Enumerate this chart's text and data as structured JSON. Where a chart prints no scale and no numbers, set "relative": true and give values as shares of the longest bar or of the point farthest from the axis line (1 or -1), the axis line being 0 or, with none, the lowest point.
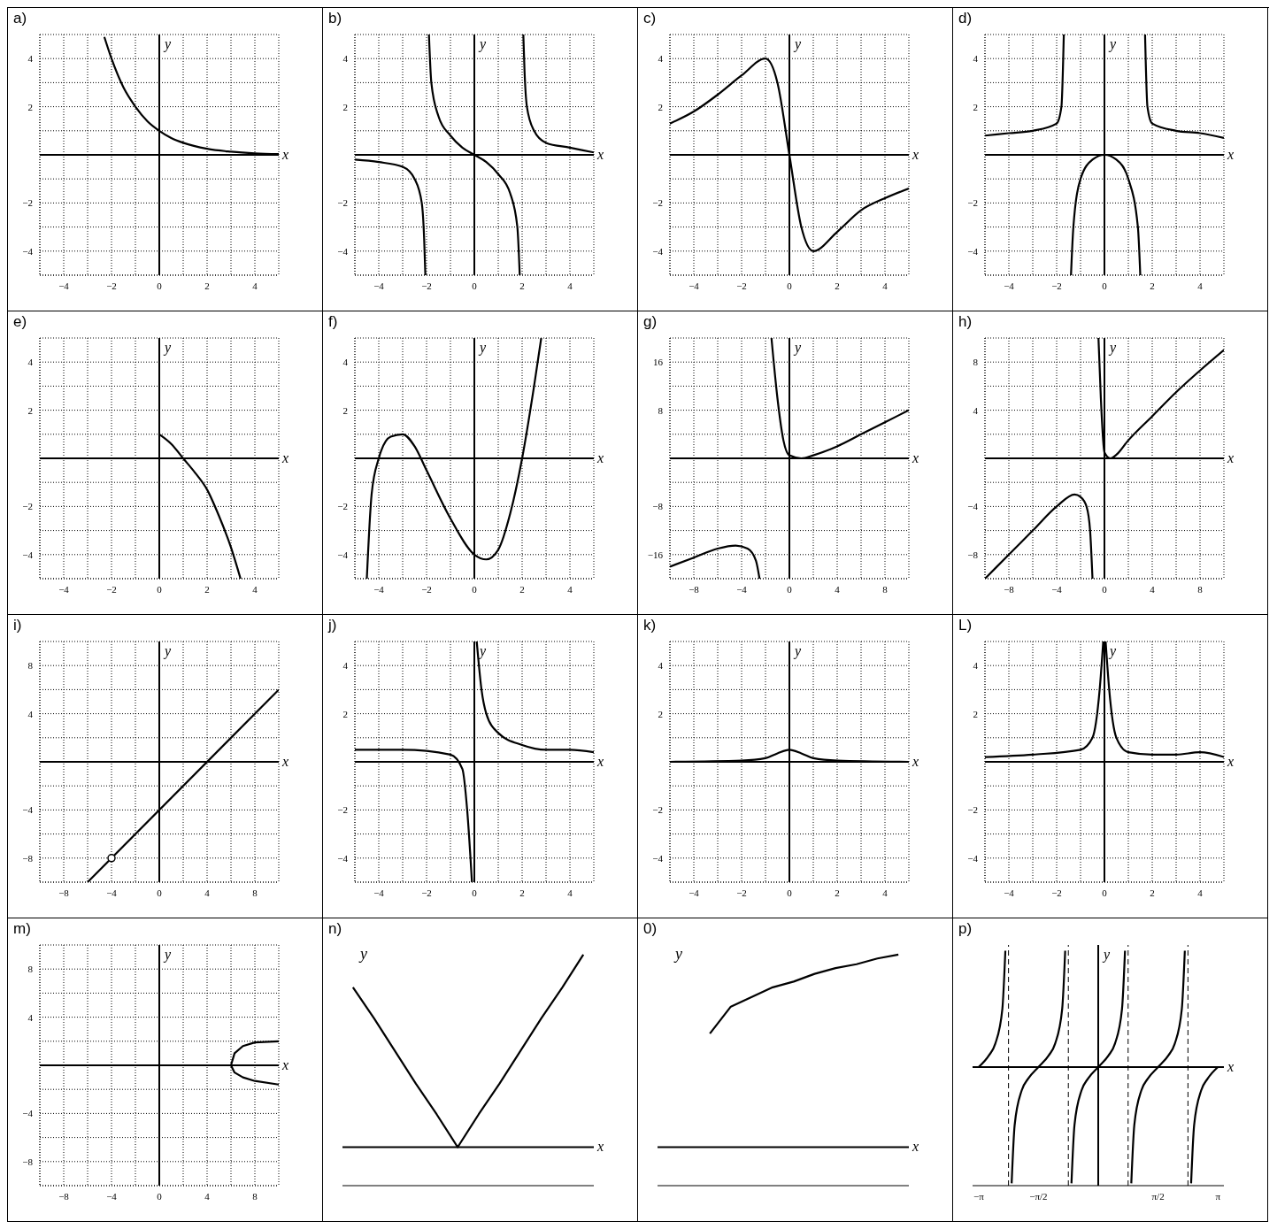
{
  "chart_data": [
    {
      "type": "line",
      "title": "a)",
      "xlabel": "x",
      "ylabel": "y",
      "grid": true,
      "xlim": [
        -5,
        5
      ],
      "ylim": [
        -5,
        5
      ],
      "xticks": [
        {
          "value": -5,
          "label": null
        },
        -4,
        {
          "value": -3,
          "label": null
        },
        -2,
        {
          "value": -1,
          "label": null
        },
        0,
        {
          "value": 1,
          "label": null
        },
        2,
        {
          "value": 3,
          "label": null
        },
        4,
        {
          "value": 5,
          "label": null
        }
      ],
      "yticks": [
        {
          "value": -5,
          "label": null
        },
        -4,
        {
          "value": -3,
          "label": null
        },
        -2,
        {
          "value": -1,
          "label": null
        },
        {
          "value": 0,
          "label": null
        },
        {
          "value": 1,
          "label": null
        },
        2,
        {
          "value": 3,
          "label": null
        },
        4,
        {
          "value": 5,
          "label": null
        }
      ],
      "series": [
        {
          "color": "#000000",
          "x": [
            -2.3,
            -2,
            -1.5,
            -1,
            -0.5,
            0,
            0.5,
            1,
            2,
            3,
            4,
            5
          ],
          "values": [
            4.9,
            4,
            2.8,
            2,
            1.4,
            1,
            0.7,
            0.5,
            0.25,
            0.13,
            0.06,
            0.03
          ]
        }
      ]
    },
    {
      "type": "line",
      "title": "b)",
      "xlabel": "x",
      "ylabel": "y",
      "grid": true,
      "xlim": [
        -5,
        5
      ],
      "ylim": [
        -5,
        5
      ],
      "xticks": [
        {
          "value": -5,
          "label": null
        },
        -4,
        {
          "value": -3,
          "label": null
        },
        -2,
        {
          "value": -1,
          "label": null
        },
        0,
        {
          "value": 1,
          "label": null
        },
        2,
        {
          "value": 3,
          "label": null
        },
        4,
        {
          "value": 5,
          "label": null
        }
      ],
      "yticks": [
        {
          "value": -5,
          "label": null
        },
        -4,
        {
          "value": -3,
          "label": null
        },
        -2,
        {
          "value": -1,
          "label": null
        },
        {
          "value": 0,
          "label": null
        },
        {
          "value": 1,
          "label": null
        },
        2,
        {
          "value": 3,
          "label": null
        },
        4,
        {
          "value": 5,
          "label": null
        }
      ],
      "series": [
        {
          "color": "#000000",
          "x": [
            -5,
            -4,
            -3,
            -2.5,
            -2.2,
            -2.1,
            -2.05
          ],
          "values": [
            -0.2,
            -0.3,
            -0.5,
            -1,
            -2,
            -3.5,
            -5
          ]
        },
        {
          "color": "#000000",
          "x": [
            -1.9,
            -1.8,
            -1.5,
            -1,
            -0.5,
            0,
            0.5,
            1,
            1.5,
            1.8,
            1.9
          ],
          "values": [
            5,
            3,
            1.6,
            0.8,
            0.3,
            0,
            -0.3,
            -0.8,
            -1.6,
            -3,
            -5
          ]
        },
        {
          "color": "#000000",
          "x": [
            2.05,
            2.1,
            2.2,
            2.5,
            3,
            4,
            5
          ],
          "values": [
            5,
            3.5,
            2,
            1,
            0.5,
            0.3,
            0.1
          ]
        }
      ]
    },
    {
      "type": "line",
      "title": "c)",
      "xlabel": "x",
      "ylabel": "y",
      "grid": true,
      "xlim": [
        -5,
        5
      ],
      "ylim": [
        -5,
        5
      ],
      "xticks": [
        {
          "value": -5,
          "label": null
        },
        -4,
        {
          "value": -3,
          "label": null
        },
        -2,
        {
          "value": -1,
          "label": null
        },
        0,
        {
          "value": 1,
          "label": null
        },
        2,
        {
          "value": 3,
          "label": null
        },
        4,
        {
          "value": 5,
          "label": null
        }
      ],
      "yticks": [
        {
          "value": -5,
          "label": null
        },
        -4,
        {
          "value": -3,
          "label": null
        },
        -2,
        {
          "value": -1,
          "label": null
        },
        {
          "value": 0,
          "label": null
        },
        {
          "value": 1,
          "label": null
        },
        2,
        {
          "value": 3,
          "label": null
        },
        4,
        {
          "value": 5,
          "label": null
        }
      ],
      "series": [
        {
          "color": "#000000",
          "x": [
            -5,
            -4,
            -3,
            -2,
            -1,
            -0.5,
            0,
            0.5,
            1,
            2,
            3,
            4,
            5
          ],
          "values": [
            1.3,
            1.8,
            2.5,
            3.3,
            4,
            3,
            0,
            -3,
            -4,
            -3.2,
            -2.3,
            -1.8,
            -1.4
          ]
        }
      ]
    },
    {
      "type": "line",
      "title": "d)",
      "xlabel": "x",
      "ylabel": "y",
      "grid": true,
      "xlim": [
        -5,
        5
      ],
      "ylim": [
        -5,
        5
      ],
      "xticks": [
        {
          "value": -5,
          "label": null
        },
        -4,
        {
          "value": -3,
          "label": null
        },
        -2,
        {
          "value": -1,
          "label": null
        },
        0,
        {
          "value": 1,
          "label": null
        },
        2,
        {
          "value": 3,
          "label": null
        },
        4,
        {
          "value": 5,
          "label": null
        }
      ],
      "yticks": [
        {
          "value": -5,
          "label": null
        },
        -4,
        {
          "value": -3,
          "label": null
        },
        -2,
        {
          "value": -1,
          "label": null
        },
        {
          "value": 0,
          "label": null
        },
        {
          "value": 1,
          "label": null
        },
        2,
        {
          "value": 3,
          "label": null
        },
        4,
        {
          "value": 5,
          "label": null
        }
      ],
      "series": [
        {
          "color": "#000000",
          "x": [
            -5,
            -4,
            -3,
            -2,
            -1.8,
            -1.7
          ],
          "values": [
            0.8,
            0.9,
            1,
            1.3,
            2,
            5
          ]
        },
        {
          "color": "#000000",
          "x": [
            -1.4,
            -1.3,
            -1,
            -0.5,
            0,
            0.5,
            1,
            1.4,
            1.5
          ],
          "values": [
            -5,
            -3,
            -1,
            -0.2,
            0,
            -0.2,
            -1,
            -3,
            -5
          ]
        },
        {
          "color": "#000000",
          "x": [
            1.7,
            1.8,
            2,
            3,
            4,
            5
          ],
          "values": [
            5,
            2,
            1.3,
            1,
            0.9,
            0.7
          ]
        }
      ]
    },
    {
      "type": "line",
      "title": "e)",
      "xlabel": "x",
      "ylabel": "y",
      "grid": true,
      "xlim": [
        -5,
        5
      ],
      "ylim": [
        -5,
        5
      ],
      "xticks": [
        {
          "value": -5,
          "label": null
        },
        -4,
        {
          "value": -3,
          "label": null
        },
        -2,
        {
          "value": -1,
          "label": null
        },
        0,
        {
          "value": 1,
          "label": null
        },
        2,
        {
          "value": 3,
          "label": null
        },
        4,
        {
          "value": 5,
          "label": null
        }
      ],
      "yticks": [
        {
          "value": -5,
          "label": null
        },
        -4,
        {
          "value": -3,
          "label": null
        },
        -2,
        {
          "value": -1,
          "label": null
        },
        {
          "value": 0,
          "label": null
        },
        {
          "value": 1,
          "label": null
        },
        2,
        {
          "value": 3,
          "label": null
        },
        4,
        {
          "value": 5,
          "label": null
        }
      ],
      "series": [
        {
          "color": "#000000",
          "x": [
            0,
            0.5,
            1,
            1.5,
            2,
            2.5,
            3,
            3.4
          ],
          "values": [
            1,
            0.6,
            0,
            -0.6,
            -1.3,
            -2.4,
            -3.7,
            -5
          ]
        }
      ]
    },
    {
      "type": "line",
      "title": "f)",
      "xlabel": "x",
      "ylabel": "y",
      "grid": true,
      "xlim": [
        -5,
        5
      ],
      "ylim": [
        -5,
        5
      ],
      "xticks": [
        {
          "value": -5,
          "label": null
        },
        -4,
        {
          "value": -3,
          "label": null
        },
        -2,
        {
          "value": -1,
          "label": null
        },
        0,
        {
          "value": 1,
          "label": null
        },
        2,
        {
          "value": 3,
          "label": null
        },
        4,
        {
          "value": 5,
          "label": null
        }
      ],
      "yticks": [
        {
          "value": -5,
          "label": null
        },
        -4,
        {
          "value": -3,
          "label": null
        },
        -2,
        {
          "value": -1,
          "label": null
        },
        {
          "value": 0,
          "label": null
        },
        {
          "value": 1,
          "label": null
        },
        2,
        {
          "value": 3,
          "label": null
        },
        4,
        {
          "value": 5,
          "label": null
        }
      ],
      "series": [
        {
          "color": "#000000",
          "x": [
            -4.5,
            -4.3,
            -4,
            -3.5,
            -3,
            -2.5,
            -2,
            -1,
            0,
            0.5,
            1,
            1.5,
            2,
            2.5,
            2.8
          ],
          "values": [
            -5,
            -1.5,
            0,
            0.9,
            1,
            0.5,
            -0.5,
            -2.5,
            -4,
            -4.2,
            -3.8,
            -2.3,
            0,
            3,
            5
          ]
        }
      ]
    },
    {
      "type": "line",
      "title": "g)",
      "xlabel": "x",
      "ylabel": "y",
      "grid": true,
      "xlim": [
        -10,
        10
      ],
      "ylim": [
        -20,
        20
      ],
      "xticks": [
        {
          "value": -10,
          "label": null
        },
        -8,
        {
          "value": -6,
          "label": null
        },
        -4,
        {
          "value": -2,
          "label": null
        },
        0,
        {
          "value": 2,
          "label": null
        },
        4,
        {
          "value": 6,
          "label": null
        },
        8,
        {
          "value": 10,
          "label": null
        }
      ],
      "yticks": [
        {
          "value": -20,
          "label": null
        },
        -16,
        {
          "value": -12,
          "label": null
        },
        -8,
        {
          "value": -4,
          "label": null
        },
        {
          "value": 0,
          "label": null
        },
        {
          "value": 4,
          "label": null
        },
        8,
        {
          "value": 12,
          "label": null
        },
        16,
        {
          "value": 20,
          "label": null
        }
      ],
      "series": [
        {
          "color": "#000000",
          "x": [
            -10,
            -8,
            -6,
            -4.5,
            -3.5,
            -2.8,
            -2.5
          ],
          "values": [
            -18,
            -16.5,
            -15,
            -14.5,
            -15,
            -17,
            -20
          ]
        },
        {
          "color": "#000000",
          "x": [
            -1.5,
            -1,
            -0.5,
            0,
            1,
            2,
            4,
            6,
            8,
            10
          ],
          "values": [
            20,
            10,
            3,
            0.5,
            0,
            0.5,
            2,
            4,
            6,
            8
          ]
        }
      ]
    },
    {
      "type": "line",
      "title": "h)",
      "xlabel": "x",
      "ylabel": "y",
      "grid": true,
      "xlim": [
        -10,
        10
      ],
      "ylim": [
        -10,
        10
      ],
      "xticks": [
        {
          "value": -10,
          "label": null
        },
        -8,
        {
          "value": -6,
          "label": null
        },
        -4,
        {
          "value": -2,
          "label": null
        },
        0,
        {
          "value": 2,
          "label": null
        },
        4,
        {
          "value": 6,
          "label": null
        },
        8,
        {
          "value": 10,
          "label": null
        }
      ],
      "yticks": [
        {
          "value": -10,
          "label": null
        },
        -8,
        {
          "value": -6,
          "label": null
        },
        -4,
        {
          "value": -2,
          "label": null
        },
        {
          "value": 0,
          "label": null
        },
        {
          "value": 2,
          "label": null
        },
        4,
        {
          "value": 6,
          "label": null
        },
        8,
        {
          "value": 10,
          "label": null
        }
      ],
      "series": [
        {
          "color": "#000000",
          "x": [
            -10,
            -8,
            -6,
            -4,
            -2.5,
            -2,
            -1.5,
            -1.2,
            -1
          ],
          "values": [
            -10,
            -8,
            -6,
            -4,
            -3,
            -3.2,
            -4,
            -6,
            -10
          ]
        },
        {
          "color": "#000000",
          "x": [
            -0.5,
            -0.3,
            0,
            0.5,
            1,
            2,
            4,
            6,
            8,
            10
          ],
          "values": [
            10,
            5,
            0.5,
            0,
            0.3,
            1.5,
            3.5,
            5.5,
            7.3,
            9
          ]
        }
      ]
    },
    {
      "type": "line",
      "title": "i)",
      "xlabel": "x",
      "ylabel": "y",
      "grid": true,
      "xlim": [
        -10,
        10
      ],
      "ylim": [
        -10,
        10
      ],
      "xticks": [
        {
          "value": -10,
          "label": null
        },
        -8,
        {
          "value": -6,
          "label": null
        },
        -4,
        {
          "value": -2,
          "label": null
        },
        0,
        {
          "value": 2,
          "label": null
        },
        4,
        {
          "value": 6,
          "label": null
        },
        8,
        {
          "value": 10,
          "label": null
        }
      ],
      "yticks": [
        {
          "value": -10,
          "label": null
        },
        -8,
        {
          "value": -6,
          "label": null
        },
        -4,
        {
          "value": -2,
          "label": null
        },
        {
          "value": 0,
          "label": null
        },
        {
          "value": 2,
          "label": null
        },
        4,
        {
          "value": 6,
          "label": null
        },
        8,
        {
          "value": 10,
          "label": null
        }
      ],
      "series": [
        {
          "color": "#000000",
          "x": [
            -6,
            10
          ],
          "values": [
            -10,
            6
          ]
        },
        {
          "type": "scatter",
          "marker": "circle",
          "color": "#000000",
          "x": [
            -4
          ],
          "values": [
            -8
          ]
        }
      ]
    },
    {
      "type": "line",
      "title": "j)",
      "xlabel": "x",
      "ylabel": "y",
      "grid": true,
      "xlim": [
        -5,
        5
      ],
      "ylim": [
        -5,
        5
      ],
      "xticks": [
        {
          "value": -5,
          "label": null
        },
        -4,
        {
          "value": -3,
          "label": null
        },
        -2,
        {
          "value": -1,
          "label": null
        },
        0,
        {
          "value": 1,
          "label": null
        },
        2,
        {
          "value": 3,
          "label": null
        },
        4,
        {
          "value": 5,
          "label": null
        }
      ],
      "yticks": [
        {
          "value": -5,
          "label": null
        },
        -4,
        {
          "value": -3,
          "label": null
        },
        -2,
        {
          "value": -1,
          "label": null
        },
        {
          "value": 0,
          "label": null
        },
        {
          "value": 1,
          "label": null
        },
        2,
        {
          "value": 3,
          "label": null
        },
        4,
        {
          "value": 5,
          "label": null
        }
      ],
      "series": [
        {
          "color": "#000000",
          "x": [
            -5,
            -3,
            -1,
            -0.5,
            -0.3,
            -0.1
          ],
          "values": [
            0.5,
            0.5,
            0.3,
            -0.3,
            -2,
            -5
          ]
        },
        {
          "color": "#000000",
          "x": [
            0.1,
            0.3,
            0.5,
            1,
            2,
            3,
            4,
            5
          ],
          "values": [
            5,
            3,
            2,
            1.2,
            0.7,
            0.5,
            0.5,
            0.4
          ]
        }
      ]
    },
    {
      "type": "line",
      "title": "k)",
      "xlabel": "x",
      "ylabel": "y",
      "grid": true,
      "xlim": [
        -5,
        5
      ],
      "ylim": [
        -5,
        5
      ],
      "xticks": [
        {
          "value": -5,
          "label": null
        },
        -4,
        {
          "value": -3,
          "label": null
        },
        -2,
        {
          "value": -1,
          "label": null
        },
        0,
        {
          "value": 1,
          "label": null
        },
        2,
        {
          "value": 3,
          "label": null
        },
        4,
        {
          "value": 5,
          "label": null
        }
      ],
      "yticks": [
        {
          "value": -5,
          "label": null
        },
        -4,
        {
          "value": -3,
          "label": null
        },
        -2,
        {
          "value": -1,
          "label": null
        },
        {
          "value": 0,
          "label": null
        },
        {
          "value": 1,
          "label": null
        },
        2,
        {
          "value": 3,
          "label": null
        },
        4,
        {
          "value": 5,
          "label": null
        }
      ],
      "series": [
        {
          "color": "#000000",
          "x": [
            -5,
            -2,
            -1,
            -0.5,
            0,
            0.5,
            1,
            2,
            5
          ],
          "values": [
            0,
            0.05,
            0.15,
            0.35,
            0.5,
            0.35,
            0.15,
            0.05,
            0
          ]
        }
      ]
    },
    {
      "type": "line",
      "title": "L)",
      "xlabel": "x",
      "ylabel": "y",
      "grid": true,
      "xlim": [
        -5,
        5
      ],
      "ylim": [
        -5,
        5
      ],
      "xticks": [
        {
          "value": -5,
          "label": null
        },
        -4,
        {
          "value": -3,
          "label": null
        },
        -2,
        {
          "value": -1,
          "label": null
        },
        0,
        {
          "value": 1,
          "label": null
        },
        2,
        {
          "value": 3,
          "label": null
        },
        4,
        {
          "value": 5,
          "label": null
        }
      ],
      "yticks": [
        {
          "value": -5,
          "label": null
        },
        -4,
        {
          "value": -3,
          "label": null
        },
        -2,
        {
          "value": -1,
          "label": null
        },
        {
          "value": 0,
          "label": null
        },
        {
          "value": 1,
          "label": null
        },
        2,
        {
          "value": 3,
          "label": null
        },
        4,
        {
          "value": 5,
          "label": null
        }
      ],
      "series": [
        {
          "color": "#000000",
          "x": [
            -5,
            -3,
            -1,
            -0.5,
            -0.2,
            -0.05
          ],
          "values": [
            0.2,
            0.3,
            0.5,
            1,
            3,
            5
          ]
        },
        {
          "color": "#000000",
          "x": [
            0.05,
            0.2,
            0.5,
            1,
            2,
            3,
            4,
            5
          ],
          "values": [
            5,
            3,
            1,
            0.4,
            0.3,
            0.3,
            0.4,
            0.2
          ]
        }
      ]
    },
    {
      "type": "line",
      "title": "m)",
      "xlabel": "x",
      "ylabel": "y",
      "grid": true,
      "xlim": [
        -10,
        10
      ],
      "ylim": [
        -10,
        10
      ],
      "xticks": [
        {
          "value": -10,
          "label": null
        },
        -8,
        {
          "value": -6,
          "label": null
        },
        -4,
        {
          "value": -2,
          "label": null
        },
        0,
        {
          "value": 2,
          "label": null
        },
        4,
        {
          "value": 6,
          "label": null
        },
        8,
        {
          "value": 10,
          "label": null
        }
      ],
      "yticks": [
        {
          "value": -10,
          "label": null
        },
        -8,
        {
          "value": -6,
          "label": null
        },
        -4,
        {
          "value": -2,
          "label": null
        },
        {
          "value": 0,
          "label": null
        },
        {
          "value": 2,
          "label": null
        },
        4,
        {
          "value": 6,
          "label": null
        },
        8,
        {
          "value": 10,
          "label": null
        }
      ],
      "series": [
        {
          "color": "#000000",
          "x": [
            10,
            8,
            7,
            6.3,
            6,
            6.3,
            7,
            8,
            10
          ],
          "values": [
            2,
            1.9,
            1.6,
            1,
            0,
            -0.6,
            -1,
            -1.3,
            -1.6
          ]
        }
      ]
    },
    {
      "type": "line",
      "title": "n)",
      "xlabel": "x",
      "ylabel": "y",
      "relative": true,
      "tick_labels": false,
      "categories": [
        null,
        null,
        null,
        null,
        null,
        null,
        null,
        null,
        null,
        null,
        null,
        null
      ],
      "series": [
        {
          "color": "#000000",
          "values": [
            0.83,
            0.67,
            0.5,
            0.33,
            0.17,
            0,
            0.17,
            0.33,
            0.5,
            0.67,
            0.83,
            1
          ]
        }
      ]
    },
    {
      "type": "line",
      "title": "0)",
      "xlabel": "x",
      "ylabel": "y",
      "relative": true,
      "tick_labels": false,
      "categories": [
        null,
        null,
        null,
        null,
        null,
        null,
        null,
        null,
        null,
        null,
        null,
        null
      ],
      "series": [
        {
          "color": "#000000",
          "values": [
            null,
            null,
            0.59,
            0.73,
            0.78,
            0.83,
            0.86,
            0.9,
            0.93,
            0.95,
            0.98,
            1
          ]
        }
      ]
    },
    {
      "type": "line",
      "title": "p)",
      "xlabel": "x",
      "ylabel": "y",
      "relative": true,
      "tick_labels": "x",
      "xlim": [
        -3.3,
        3.3
      ],
      "xticks": [
        {
          "value": -3.1416,
          "label": "−π"
        },
        {
          "value": -1.5708,
          "label": "−π/2"
        },
        {
          "value": 1.5708,
          "label": "π/2"
        },
        {
          "value": 3.1416,
          "label": "π"
        }
      ],
      "ref_lines": [
        {
          "axis": "x",
          "value": -2.356,
          "line_style": "dashed"
        },
        {
          "axis": "x",
          "value": -0.785,
          "line_style": "dashed"
        },
        {
          "axis": "x",
          "value": 0.785,
          "line_style": "dashed"
        },
        {
          "axis": "x",
          "value": 2.356,
          "line_style": "dashed"
        }
      ],
      "series": [
        {
          "color": "#000000",
          "x": [
            -3.142,
            -2.872,
            -2.704,
            -2.518,
            -2.439
          ],
          "values": [
            0,
            0.1,
            0.2,
            0.5,
            1
          ]
        },
        {
          "color": "#000000",
          "x": [
            -2.274,
            -2.195,
            -2.009,
            -1.841,
            -1.571,
            -1.301,
            -1.133,
            -0.947,
            -0.868
          ],
          "values": [
            -1,
            -0.5,
            -0.2,
            -0.1,
            0,
            0.1,
            0.2,
            0.5,
            1
          ]
        },
        {
          "color": "#000000",
          "x": [
            -0.703,
            -0.624,
            -0.438,
            -0.27,
            0,
            0.27,
            0.438,
            0.624,
            0.703
          ],
          "values": [
            -1,
            -0.5,
            -0.2,
            -0.1,
            0,
            0.1,
            0.2,
            0.5,
            1
          ]
        },
        {
          "color": "#000000",
          "x": [
            0.868,
            0.947,
            1.133,
            1.301,
            1.571,
            1.841,
            2.009,
            2.195,
            2.274
          ],
          "values": [
            -1,
            -0.5,
            -0.2,
            -0.1,
            0,
            0.1,
            0.2,
            0.5,
            1
          ]
        },
        {
          "color": "#000000",
          "x": [
            2.439,
            2.518,
            2.704,
            2.872,
            3.142
          ],
          "values": [
            -1,
            -0.5,
            -0.2,
            -0.1,
            0
          ]
        }
      ]
    }
  ]
}
